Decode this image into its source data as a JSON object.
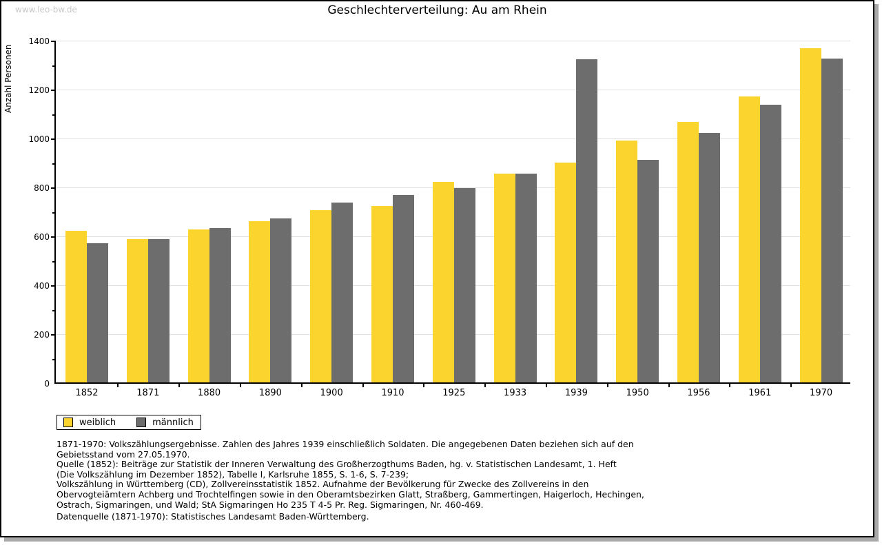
{
  "watermark": "www.leo-bw.de",
  "title": "Geschlechterverteilung: Au am Rhein",
  "chart_data": {
    "type": "bar",
    "title": "Geschlechterverteilung: Au am Rhein",
    "xlabel": "",
    "ylabel": "Anzahl Personen",
    "ylim": [
      0,
      1400
    ],
    "ytick_step": 200,
    "ytick_minor_step": 100,
    "grid": true,
    "legend_position": "bottom-left",
    "categories": [
      "1852",
      "1871",
      "1880",
      "1890",
      "1900",
      "1910",
      "1925",
      "1933",
      "1939",
      "1950",
      "1956",
      "1961",
      "1970"
    ],
    "series": [
      {
        "name": "weiblich",
        "color": "#fcd42e",
        "values": [
          620,
          585,
          625,
          660,
          705,
          720,
          820,
          855,
          900,
          990,
          1065,
          1170,
          1365
        ]
      },
      {
        "name": "männlich",
        "color": "#6d6d6d",
        "values": [
          570,
          585,
          630,
          670,
          735,
          765,
          795,
          855,
          1320,
          910,
          1020,
          1135,
          1325
        ]
      }
    ]
  },
  "colors": {
    "female_bar": "#fcd42e",
    "male_bar": "#6d6d6d",
    "gridline": "#e0e0e0",
    "frame_shadow": "#a9a9a9",
    "watermark": "#c9c9c9"
  },
  "footnotes": {
    "lines": [
      "1871-1970: Volkszählungsergebnisse. Zahlen des Jahres 1939 einschließlich Soldaten. Die angegebenen Daten beziehen sich auf den",
      "Gebietsstand vom 27.05.1970.",
      "Quelle (1852): Beiträge zur Statistik der Inneren Verwaltung des Großherzogthums Baden, hg. v. Statistischen Landesamt, 1. Heft",
      "(Die Volkszählung im Dezember 1852), Tabelle I, Karlsruhe 1855, S. 1-6, S. 7-239;",
      "Volkszählung in Württemberg (CD), Zollvereinsstatistik 1852. Aufnahme der Bevölkerung für Zwecke des Zollvereins in den",
      "Obervogteiämtern Achberg und Trochtelfingen sowie in den Oberamtsbezirken Glatt, Straßberg, Gammertingen, Haigerloch, Hechingen,",
      "Ostrach, Sigmaringen, und Wald; StA Sigmaringen Ho 235 T 4-5 Pr. Reg. Sigmaringen, Nr. 460-469."
    ],
    "datasource": "Datenquelle (1871-1970): Statistisches Landesamt Baden-Württemberg."
  }
}
